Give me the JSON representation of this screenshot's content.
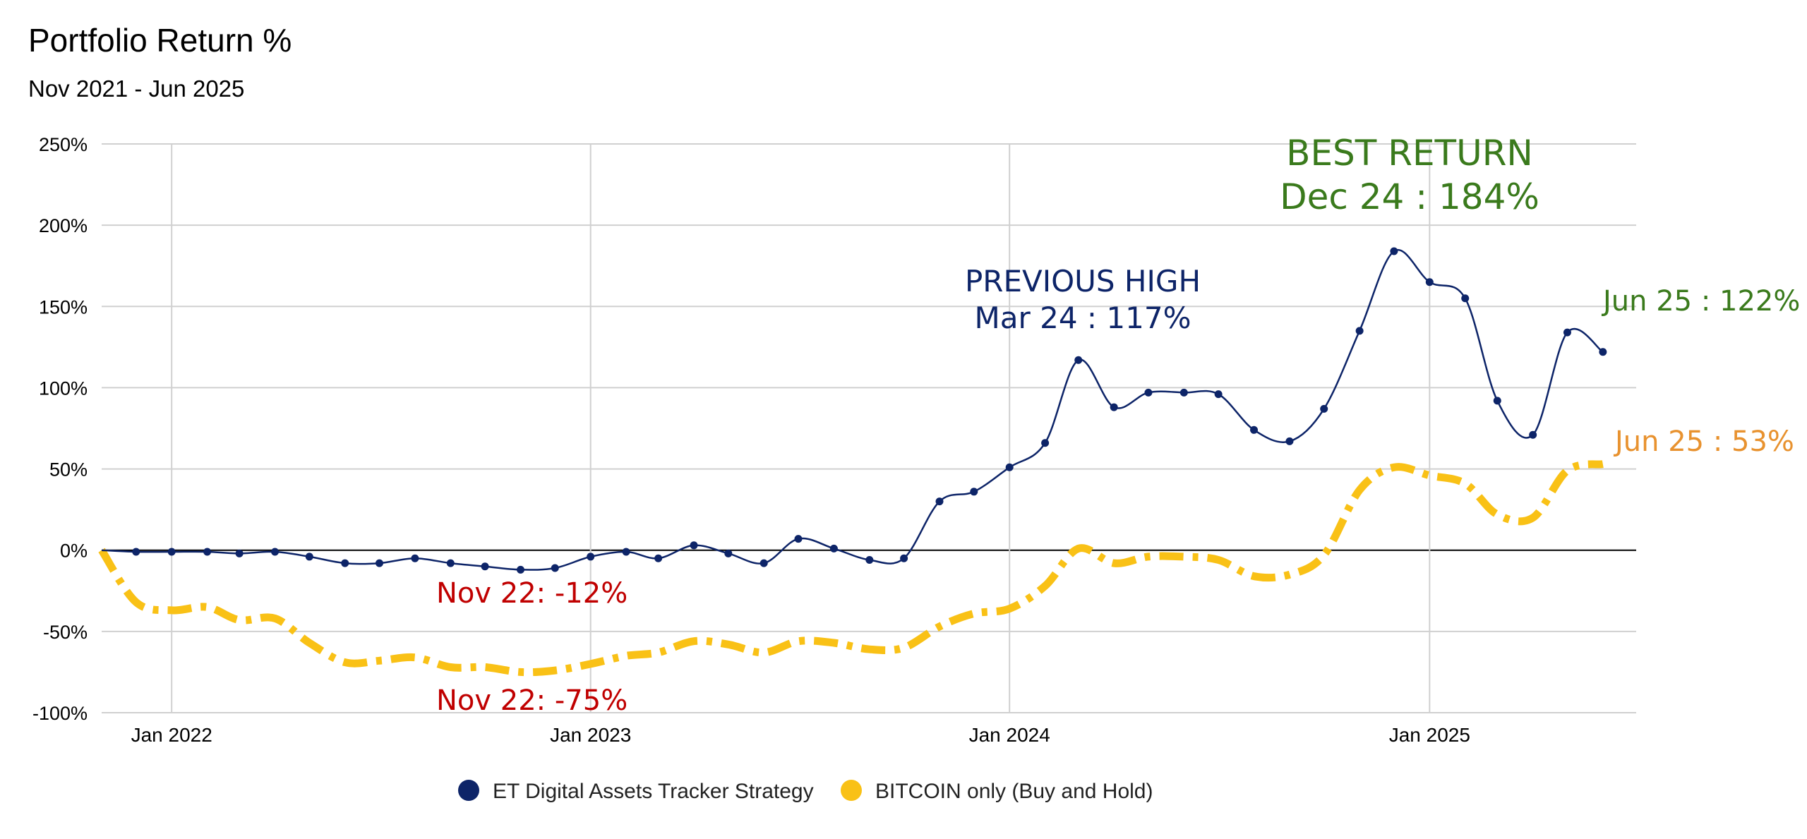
{
  "colors": {
    "strategy": "#0d2468",
    "bitcoin": "#f9c116",
    "red": "#c00000",
    "green": "#3a7a1c",
    "orange": "#e8922f",
    "grid": "#d0d0d0",
    "zero_line": "#000000"
  },
  "chart_data": {
    "type": "line",
    "title": "Portfolio Return %",
    "subtitle": "Nov 2021 - Jun 2025",
    "xlabel": "",
    "ylabel": "",
    "ylim": [
      -100,
      250
    ],
    "xlim": [
      "2021-11-01",
      "2025-06-30"
    ],
    "y_ticks": [
      250,
      200,
      150,
      100,
      50,
      0,
      -50,
      -100
    ],
    "y_tick_labels": [
      "250%",
      "200%",
      "150%",
      "100%",
      "50%",
      "0%",
      "-50%",
      "-100%"
    ],
    "x_ticks": [
      "2022-01-01",
      "2023-01-01",
      "2024-01-01",
      "2025-01-01"
    ],
    "x_tick_labels": [
      "Jan 2022",
      "Jan 2023",
      "Jan 2024",
      "Jan 2025"
    ],
    "grid": true,
    "legend_position": "bottom",
    "series": [
      {
        "name": "ET Digital Assets Tracker Strategy",
        "style": "solid-with-markers",
        "x": [
          "2021-11-01",
          "2021-12-01",
          "2022-01-01",
          "2022-02-01",
          "2022-03-01",
          "2022-04-01",
          "2022-05-01",
          "2022-06-01",
          "2022-07-01",
          "2022-08-01",
          "2022-09-01",
          "2022-10-01",
          "2022-11-01",
          "2022-12-01",
          "2023-01-01",
          "2023-02-01",
          "2023-03-01",
          "2023-04-01",
          "2023-05-01",
          "2023-06-01",
          "2023-07-01",
          "2023-08-01",
          "2023-09-01",
          "2023-10-01",
          "2023-11-01",
          "2023-12-01",
          "2024-01-01",
          "2024-02-01",
          "2024-03-01",
          "2024-04-01",
          "2024-05-01",
          "2024-06-01",
          "2024-07-01",
          "2024-08-01",
          "2024-09-01",
          "2024-10-01",
          "2024-11-01",
          "2024-12-01",
          "2025-01-01",
          "2025-02-01",
          "2025-03-01",
          "2025-04-01",
          "2025-05-01",
          "2025-06-01"
        ],
        "values": [
          0,
          -1,
          -1,
          -1,
          -2,
          -1,
          -4,
          -8,
          -8,
          -5,
          -8,
          -10,
          -12,
          -11,
          -4,
          -1,
          -5,
          3,
          -2,
          -8,
          7,
          1,
          -6,
          -5,
          30,
          36,
          51,
          66,
          117,
          88,
          97,
          97,
          96,
          74,
          67,
          87,
          135,
          184,
          165,
          155,
          92,
          71,
          134,
          122
        ]
      },
      {
        "name": "BITCOIN only (Buy and Hold)",
        "style": "dash-dot",
        "x": [
          "2021-11-01",
          "2021-12-01",
          "2022-01-01",
          "2022-02-01",
          "2022-03-01",
          "2022-04-01",
          "2022-05-01",
          "2022-06-01",
          "2022-07-01",
          "2022-08-01",
          "2022-09-01",
          "2022-10-01",
          "2022-11-01",
          "2022-12-01",
          "2023-01-01",
          "2023-02-01",
          "2023-03-01",
          "2023-04-01",
          "2023-05-01",
          "2023-06-01",
          "2023-07-01",
          "2023-08-01",
          "2023-09-01",
          "2023-10-01",
          "2023-11-01",
          "2023-12-01",
          "2024-01-01",
          "2024-02-01",
          "2024-03-01",
          "2024-04-01",
          "2024-05-01",
          "2024-06-01",
          "2024-07-01",
          "2024-08-01",
          "2024-09-01",
          "2024-10-01",
          "2024-11-01",
          "2024-12-01",
          "2025-01-01",
          "2025-02-01",
          "2025-03-01",
          "2025-04-01",
          "2025-05-01",
          "2025-06-01"
        ],
        "values": [
          0,
          -32,
          -37,
          -35,
          -43,
          -42,
          -57,
          -69,
          -68,
          -66,
          -72,
          -72,
          -75,
          -74,
          -70,
          -65,
          -63,
          -56,
          -58,
          -63,
          -56,
          -57,
          -61,
          -60,
          -47,
          -39,
          -36,
          -22,
          1,
          -8,
          -4,
          -4,
          -6,
          -16,
          -15,
          -3,
          37,
          51,
          46,
          41,
          22,
          20,
          49,
          53
        ]
      }
    ],
    "annotations": [
      {
        "text": "BEST RETURN",
        "x": "2024-12-01",
        "y": 184,
        "series": "strategy",
        "color_key": "green"
      },
      {
        "text": "Dec 24 : 184%",
        "x": "2024-12-01",
        "y": 184,
        "series": "strategy",
        "color_key": "green"
      },
      {
        "text": "PREVIOUS HIGH",
        "x": "2024-03-01",
        "y": 117,
        "series": "strategy",
        "color_key": "strategy"
      },
      {
        "text": "Mar 24 : 117%",
        "x": "2024-03-01",
        "y": 117,
        "series": "strategy",
        "color_key": "strategy"
      },
      {
        "text": "Jun 25 : 122%",
        "x": "2025-06-01",
        "y": 122,
        "series": "strategy",
        "color_key": "green"
      },
      {
        "text": "Jun 25 : 53%",
        "x": "2025-06-01",
        "y": 53,
        "series": "bitcoin",
        "color_key": "orange"
      },
      {
        "text": "Nov 22: -12%",
        "x": "2022-11-01",
        "y": -12,
        "series": "strategy",
        "color_key": "red"
      },
      {
        "text": "Nov 22: -75%",
        "x": "2022-11-01",
        "y": -75,
        "series": "bitcoin",
        "color_key": "red"
      }
    ]
  }
}
